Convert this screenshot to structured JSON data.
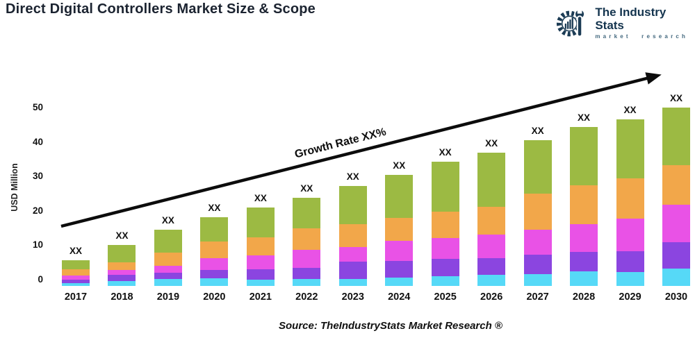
{
  "header": {
    "title": "Direct Digital Controllers Market Size & Scope",
    "logo": {
      "name": "The Industry Stats",
      "tagline": "market research",
      "color": "#1c3c55"
    }
  },
  "chart_data": {
    "type": "bar",
    "stacked": true,
    "title": "Direct Digital Controllers Market Size & Scope",
    "xlabel": "",
    "ylabel": "USD Million",
    "yticks": [
      0,
      10,
      20,
      30,
      40,
      50
    ],
    "ylim": [
      -2,
      52
    ],
    "grid": false,
    "legend": false,
    "bar_label": "XX",
    "baseline": -1.8,
    "categories": [
      "2017",
      "2018",
      "2019",
      "2020",
      "2021",
      "2022",
      "2023",
      "2024",
      "2025",
      "2026",
      "2027",
      "2028",
      "2029",
      "2030"
    ],
    "series": [
      {
        "name": "segment-cyan",
        "color": "#56d9f7",
        "values": [
          0.8,
          1.4,
          2.0,
          2.2,
          1.8,
          2.0,
          2.0,
          2.4,
          2.8,
          3.2,
          3.4,
          4.2,
          4.0,
          5.0
        ]
      },
      {
        "name": "segment-purple",
        "color": "#8b45e0",
        "values": [
          1.0,
          1.8,
          1.8,
          2.4,
          3.0,
          3.2,
          5.0,
          4.8,
          5.0,
          4.9,
          5.7,
          5.7,
          6.1,
          7.7
        ]
      },
      {
        "name": "segment-magenta",
        "color": "#e952e6",
        "values": [
          1.2,
          1.4,
          2.0,
          3.4,
          4.1,
          5.3,
          4.3,
          5.9,
          6.1,
          6.8,
          7.2,
          8.0,
          9.4,
          10.9
        ]
      },
      {
        "name": "segment-orange",
        "color": "#f2a74a",
        "values": [
          1.8,
          2.2,
          3.9,
          4.9,
          5.2,
          6.2,
          6.6,
          6.6,
          7.7,
          8.1,
          10.5,
          11.3,
          11.7,
          11.5
        ]
      },
      {
        "name": "segment-green",
        "color": "#9cba43",
        "values": [
          2.6,
          5.1,
          6.6,
          7.0,
          8.7,
          8.9,
          11.1,
          12.5,
          14.5,
          15.7,
          15.5,
          17.0,
          17.2,
          16.7
        ]
      }
    ],
    "stack_tops": [
      5.6,
      10.1,
      14.5,
      18.1,
      21.0,
      23.8,
      27.2,
      30.4,
      34.3,
      36.9,
      40.5,
      44.4,
      46.6,
      50.0
    ],
    "annotation": {
      "label": "Growth Rate XX%"
    }
  },
  "footer": {
    "source": "Source: TheIndustryStats Market Research ®"
  }
}
